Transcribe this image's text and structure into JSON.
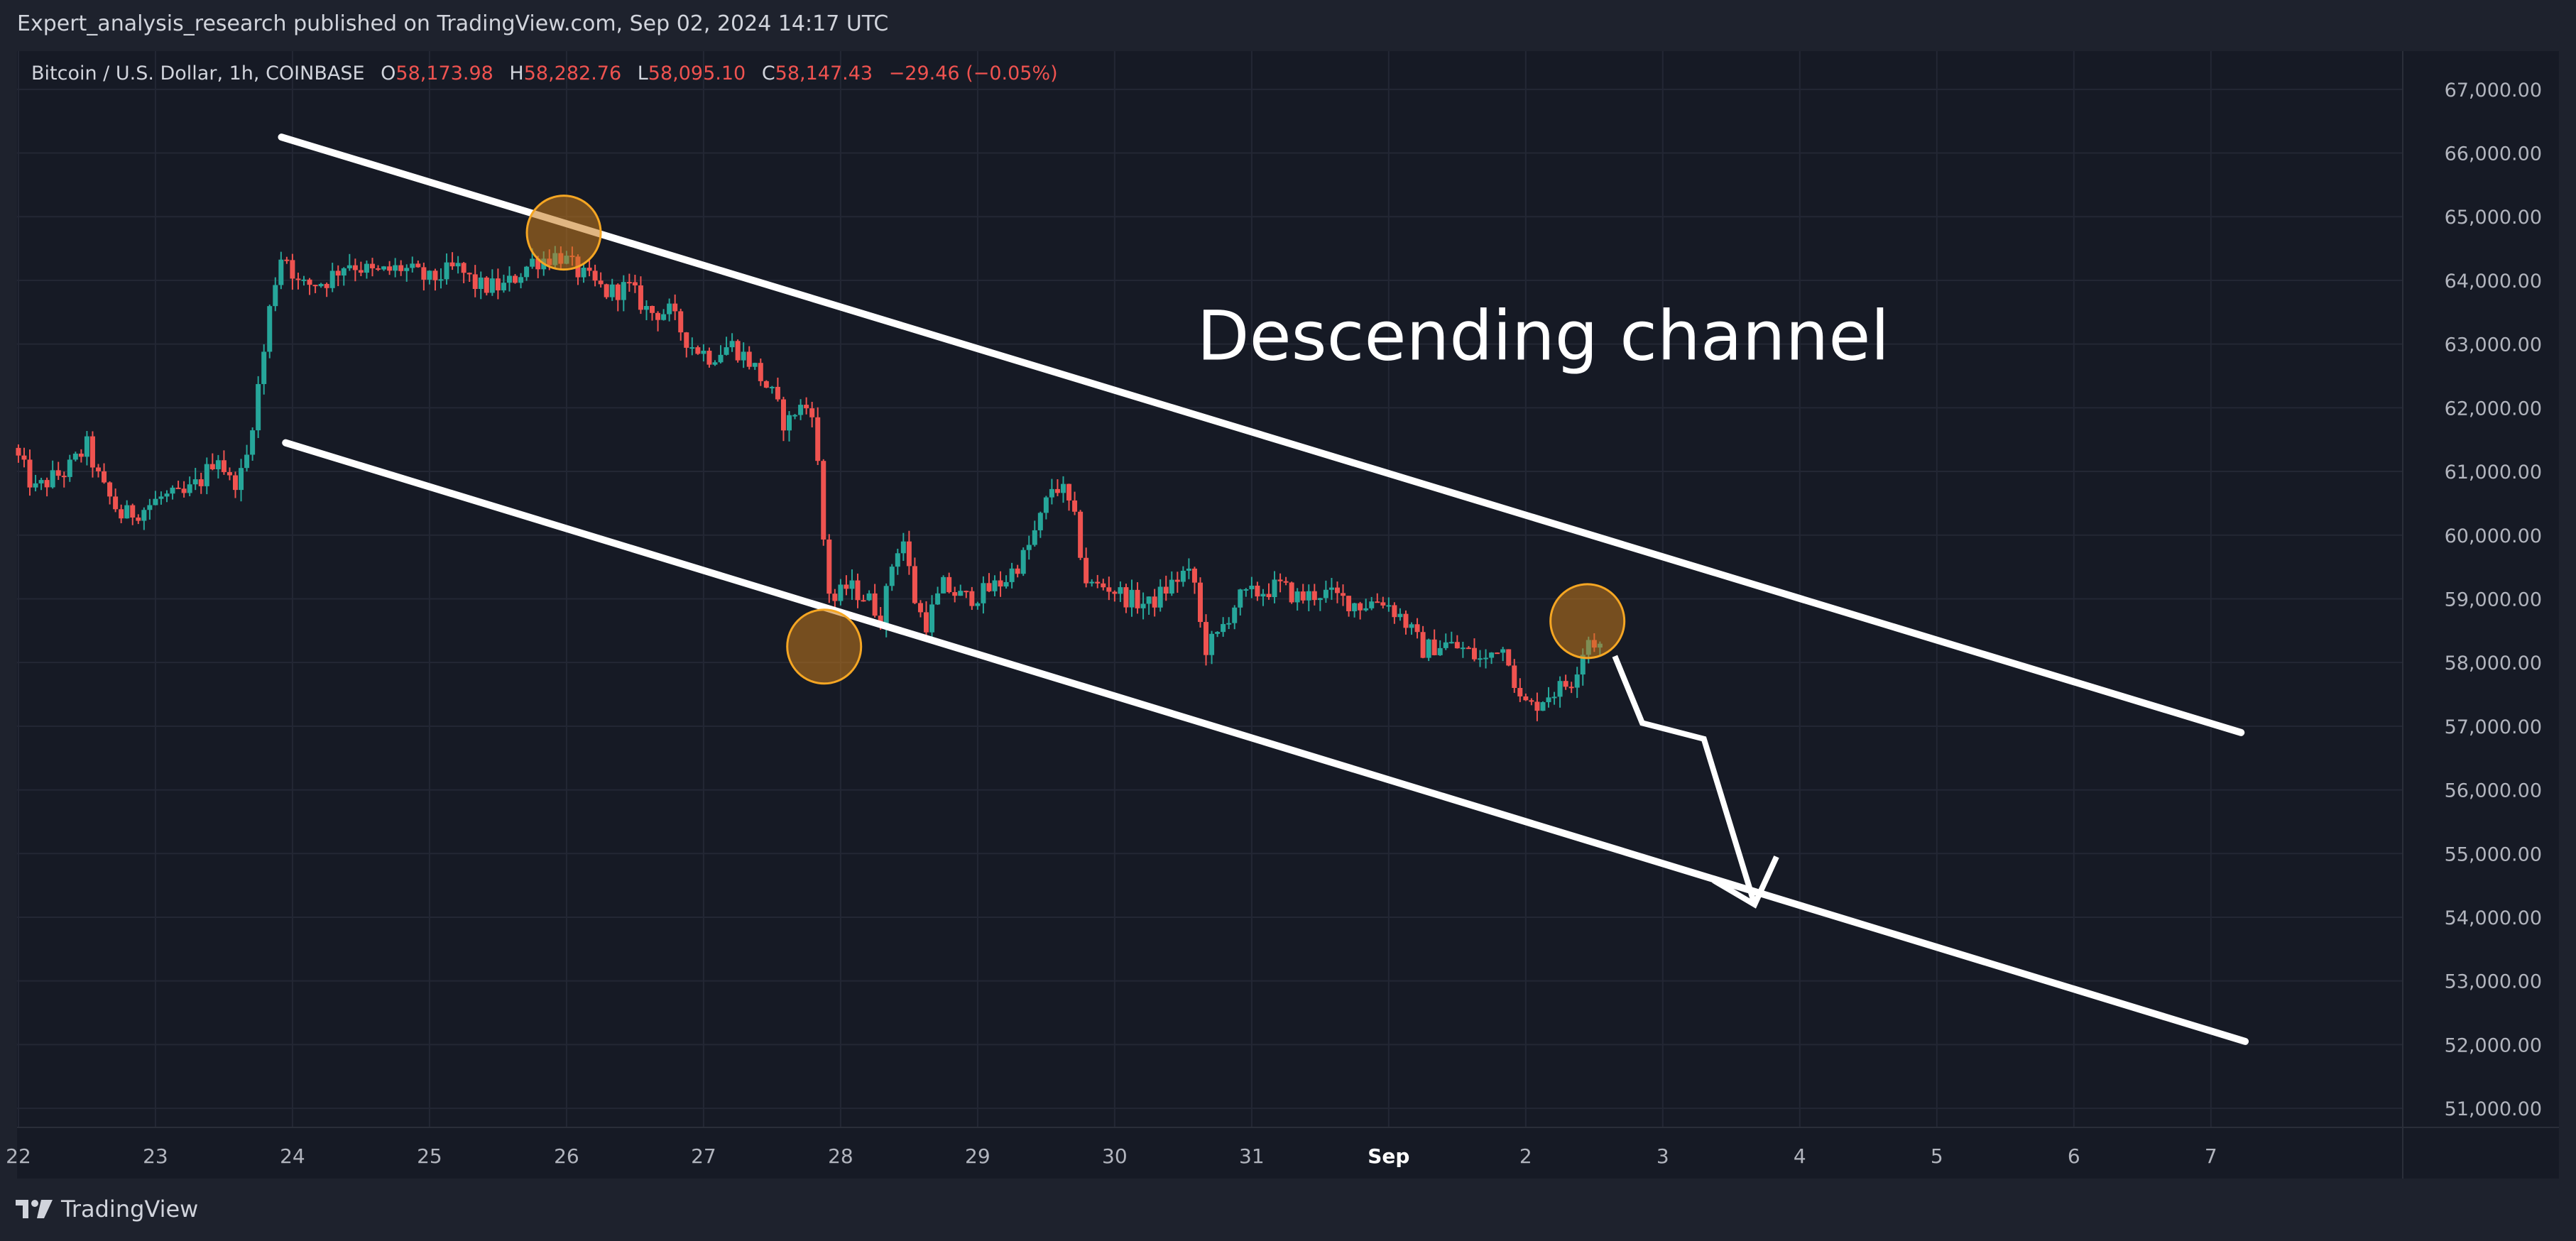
{
  "header": {
    "published_line": "Expert_analysis_research published on TradingView.com, Sep 02, 2024 14:17 UTC"
  },
  "footer": {
    "brand_label": "TradingView",
    "logo_icon": "tradingview-logo-icon"
  },
  "legend": {
    "symbol": "Bitcoin / U.S. Dollar, 1h, COINBASE",
    "open_label": "O",
    "open": "58,173.98",
    "high_label": "H",
    "high": "58,282.76",
    "low_label": "L",
    "low": "58,095.10",
    "close_label": "C",
    "close": "58,147.43",
    "change": "−29.46 (−0.05%)"
  },
  "colors": {
    "background": "#161a25",
    "up_candle": "#26a69a",
    "down_candle": "#ef5350",
    "grid": "#232734",
    "axis_text": "#b2b5be",
    "drawing": "#ffffff",
    "marker_fill": "#c77a1c",
    "marker_stroke": "#f5a623"
  },
  "chart_data": {
    "type": "candlestick",
    "symbol": "BTCUSD",
    "interval": "1h",
    "exchange": "COINBASE",
    "grid": true,
    "x_axis": {
      "ticks": [
        {
          "label": "22",
          "day": 22
        },
        {
          "label": "23",
          "day": 23
        },
        {
          "label": "24",
          "day": 24
        },
        {
          "label": "25",
          "day": 25
        },
        {
          "label": "26",
          "day": 26
        },
        {
          "label": "27",
          "day": 27
        },
        {
          "label": "28",
          "day": 28
        },
        {
          "label": "29",
          "day": 29
        },
        {
          "label": "30",
          "day": 30
        },
        {
          "label": "31",
          "day": 31
        },
        {
          "label": "Sep",
          "day": 32,
          "bold": true
        },
        {
          "label": "2",
          "day": 33
        },
        {
          "label": "3",
          "day": 34
        },
        {
          "label": "4",
          "day": 35
        },
        {
          "label": "5",
          "day": 36
        },
        {
          "label": "6",
          "day": 37
        },
        {
          "label": "7",
          "day": 38
        }
      ],
      "range_days": [
        21.99,
        39.4
      ]
    },
    "y_axis": {
      "range": [
        50700,
        67600
      ],
      "ticks": [
        {
          "value": 67000,
          "label": "67,000.00"
        },
        {
          "value": 66000,
          "label": "66,000.00"
        },
        {
          "value": 65000,
          "label": "65,000.00"
        },
        {
          "value": 64000,
          "label": "64,000.00"
        },
        {
          "value": 63000,
          "label": "63,000.00"
        },
        {
          "value": 62000,
          "label": "62,000.00"
        },
        {
          "value": 61000,
          "label": "61,000.00"
        },
        {
          "value": 60000,
          "label": "60,000.00"
        },
        {
          "value": 59000,
          "label": "59,000.00"
        },
        {
          "value": 58000,
          "label": "58,000.00"
        },
        {
          "value": 57000,
          "label": "57,000.00"
        },
        {
          "value": 56000,
          "label": "56,000.00"
        },
        {
          "value": 55000,
          "label": "55,000.00"
        },
        {
          "value": 54000,
          "label": "54,000.00"
        },
        {
          "value": 53000,
          "label": "53,000.00"
        },
        {
          "value": 52000,
          "label": "52,000.00"
        },
        {
          "value": 51000,
          "label": "51,000.00"
        }
      ]
    },
    "price_path": [
      {
        "day": 22.0,
        "price": 61200
      },
      {
        "day": 22.12,
        "price": 60700
      },
      {
        "day": 22.25,
        "price": 60900
      },
      {
        "day": 22.35,
        "price": 61000
      },
      {
        "day": 22.5,
        "price": 61400
      },
      {
        "day": 22.6,
        "price": 60800
      },
      {
        "day": 22.75,
        "price": 60300
      },
      {
        "day": 22.9,
        "price": 60400
      },
      {
        "day": 23.05,
        "price": 60600
      },
      {
        "day": 23.2,
        "price": 60600
      },
      {
        "day": 23.35,
        "price": 60900
      },
      {
        "day": 23.45,
        "price": 61300
      },
      {
        "day": 23.55,
        "price": 60800
      },
      {
        "day": 23.65,
        "price": 61000
      },
      {
        "day": 23.7,
        "price": 61700
      },
      {
        "day": 23.78,
        "price": 62700
      },
      {
        "day": 23.85,
        "price": 63800
      },
      {
        "day": 23.93,
        "price": 64500
      },
      {
        "day": 24.05,
        "price": 63900
      },
      {
        "day": 24.25,
        "price": 64000
      },
      {
        "day": 24.4,
        "price": 64300
      },
      {
        "day": 24.6,
        "price": 64100
      },
      {
        "day": 24.8,
        "price": 64200
      },
      {
        "day": 25.0,
        "price": 64000
      },
      {
        "day": 25.2,
        "price": 64200
      },
      {
        "day": 25.35,
        "price": 63900
      },
      {
        "day": 25.55,
        "price": 63900
      },
      {
        "day": 25.75,
        "price": 64300
      },
      {
        "day": 25.95,
        "price": 64400
      },
      {
        "day": 26.1,
        "price": 64100
      },
      {
        "day": 26.3,
        "price": 63800
      },
      {
        "day": 26.45,
        "price": 63900
      },
      {
        "day": 26.6,
        "price": 63500
      },
      {
        "day": 26.75,
        "price": 63500
      },
      {
        "day": 26.9,
        "price": 63000
      },
      {
        "day": 27.05,
        "price": 62800
      },
      {
        "day": 27.2,
        "price": 63000
      },
      {
        "day": 27.35,
        "price": 62700
      },
      {
        "day": 27.5,
        "price": 62200
      },
      {
        "day": 27.6,
        "price": 61700
      },
      {
        "day": 27.68,
        "price": 62000
      },
      {
        "day": 27.8,
        "price": 62000
      },
      {
        "day": 27.88,
        "price": 59800
      },
      {
        "day": 27.93,
        "price": 58900
      },
      {
        "day": 28.05,
        "price": 59200
      },
      {
        "day": 28.2,
        "price": 59000
      },
      {
        "day": 28.3,
        "price": 58700
      },
      {
        "day": 28.38,
        "price": 59600
      },
      {
        "day": 28.45,
        "price": 60000
      },
      {
        "day": 28.55,
        "price": 58900
      },
      {
        "day": 28.62,
        "price": 58600
      },
      {
        "day": 28.75,
        "price": 59200
      },
      {
        "day": 28.9,
        "price": 59000
      },
      {
        "day": 29.05,
        "price": 59100
      },
      {
        "day": 29.2,
        "price": 59300
      },
      {
        "day": 29.35,
        "price": 59700
      },
      {
        "day": 29.45,
        "price": 60200
      },
      {
        "day": 29.55,
        "price": 60800
      },
      {
        "day": 29.62,
        "price": 60700
      },
      {
        "day": 29.7,
        "price": 60300
      },
      {
        "day": 29.8,
        "price": 59200
      },
      {
        "day": 29.95,
        "price": 59200
      },
      {
        "day": 30.1,
        "price": 59000
      },
      {
        "day": 30.25,
        "price": 58900
      },
      {
        "day": 30.4,
        "price": 59200
      },
      {
        "day": 30.5,
        "price": 59400
      },
      {
        "day": 30.58,
        "price": 59300
      },
      {
        "day": 30.65,
        "price": 58200
      },
      {
        "day": 30.75,
        "price": 58400
      },
      {
        "day": 30.82,
        "price": 58700
      },
      {
        "day": 30.9,
        "price": 59000
      },
      {
        "day": 31.05,
        "price": 59100
      },
      {
        "day": 31.2,
        "price": 59200
      },
      {
        "day": 31.35,
        "price": 59000
      },
      {
        "day": 31.5,
        "price": 59100
      },
      {
        "day": 31.65,
        "price": 59000
      },
      {
        "day": 31.8,
        "price": 58900
      },
      {
        "day": 31.95,
        "price": 59000
      },
      {
        "day": 32.1,
        "price": 58700
      },
      {
        "day": 32.25,
        "price": 58200
      },
      {
        "day": 32.4,
        "price": 58300
      },
      {
        "day": 32.55,
        "price": 58200
      },
      {
        "day": 32.7,
        "price": 58000
      },
      {
        "day": 32.8,
        "price": 58300
      },
      {
        "day": 32.88,
        "price": 58100
      },
      {
        "day": 32.95,
        "price": 57400
      },
      {
        "day": 33.05,
        "price": 57300
      },
      {
        "day": 33.15,
        "price": 57500
      },
      {
        "day": 33.25,
        "price": 57600
      },
      {
        "day": 33.33,
        "price": 57700
      },
      {
        "day": 33.4,
        "price": 58100
      },
      {
        "day": 33.45,
        "price": 58400
      },
      {
        "day": 33.52,
        "price": 58300
      },
      {
        "day": 33.58,
        "price": 58150
      }
    ],
    "drawings": {
      "upper_channel_line": {
        "start": {
          "day": 23.92,
          "price": 66250
        },
        "end": {
          "day": 38.22,
          "price": 56900
        }
      },
      "lower_channel_line": {
        "start": {
          "day": 23.95,
          "price": 61450
        },
        "end": {
          "day": 38.25,
          "price": 52050
        }
      },
      "projection_path": [
        {
          "day": 33.65,
          "price": 58100
        },
        {
          "day": 33.85,
          "price": 57050
        },
        {
          "day": 34.3,
          "price": 56800
        },
        {
          "day": 34.67,
          "price": 54200
        }
      ],
      "arrow_head": [
        {
          "day": 34.37,
          "price": 54580
        },
        {
          "day": 34.67,
          "price": 54200
        },
        {
          "day": 34.83,
          "price": 54950
        }
      ],
      "touch_markers": [
        {
          "day": 25.98,
          "price": 64750
        },
        {
          "day": 27.88,
          "price": 58250
        },
        {
          "day": 33.45,
          "price": 58650
        }
      ],
      "annotation": {
        "text": "Descending channel",
        "day": 30.6,
        "price": 63000
      }
    }
  }
}
